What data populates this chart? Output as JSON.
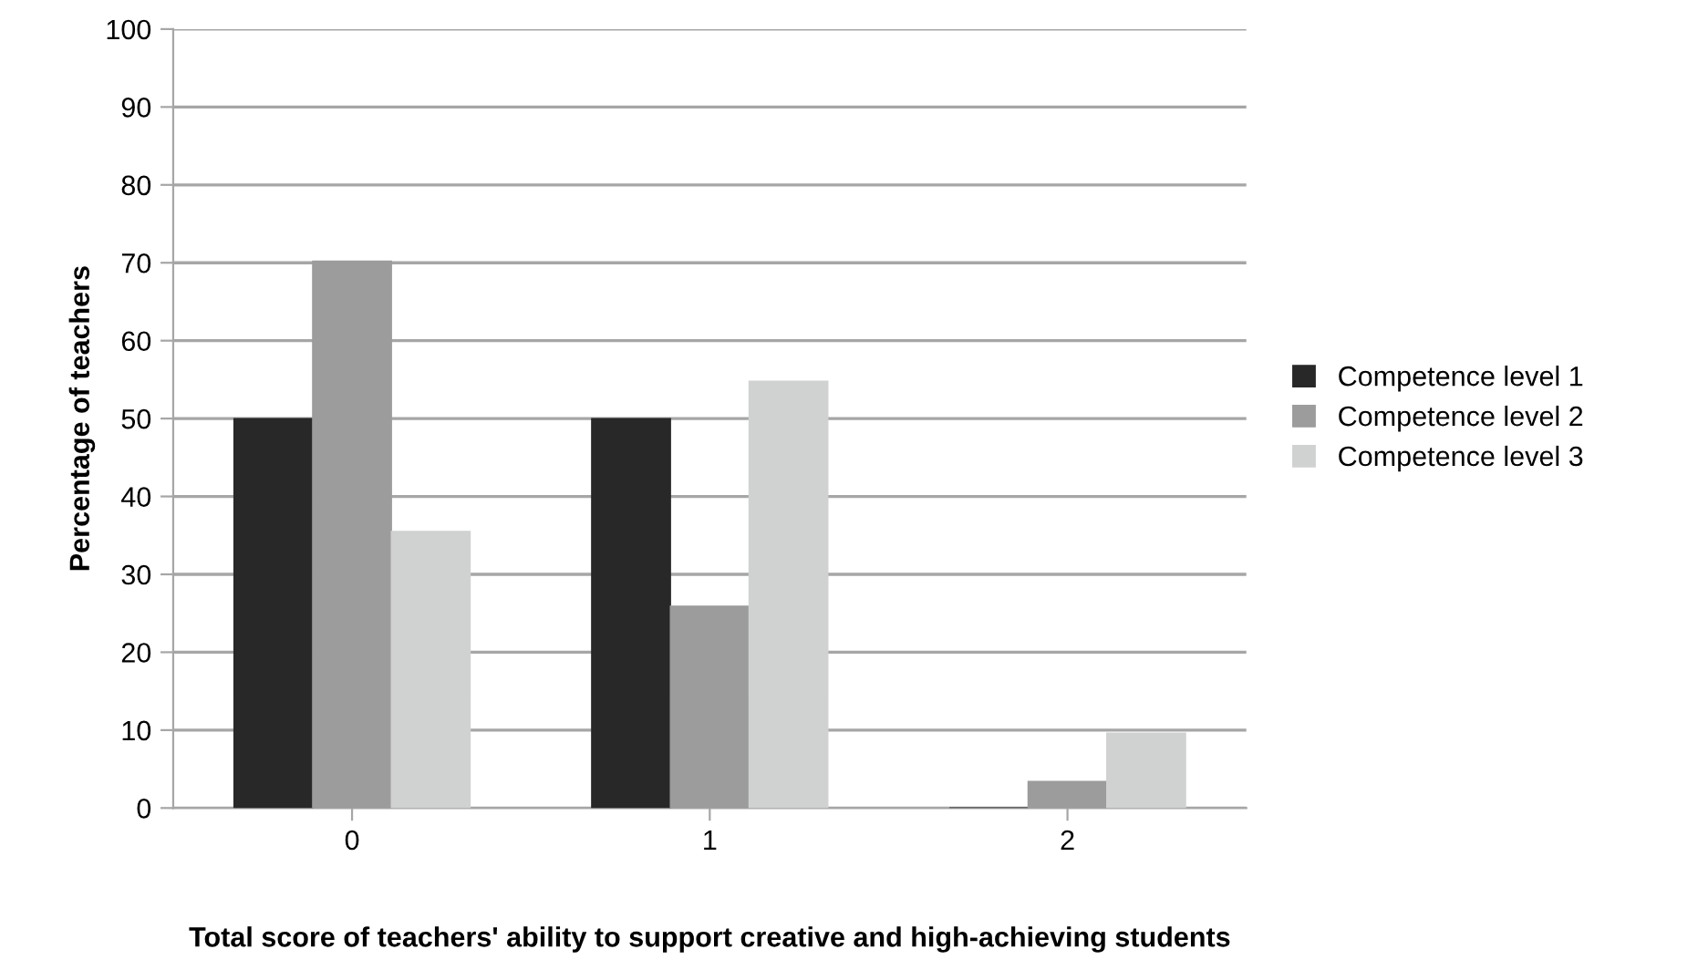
{
  "chart_data": {
    "type": "bar",
    "xlabel": "Total score of teachers' ability to support creative and high-achieving students",
    "ylabel": "Percentage of teachers",
    "categories": [
      "0",
      "1",
      "2"
    ],
    "series": [
      {
        "name": "Competence level 1",
        "color": "#282828",
        "values": [
          50,
          50,
          0
        ]
      },
      {
        "name": "Competence level 2",
        "color": "#9c9c9c",
        "values": [
          70.2,
          25.9,
          3.4
        ]
      },
      {
        "name": "Competence level 3",
        "color": "#d0d2d1",
        "values": [
          35.5,
          54.8,
          9.6
        ]
      }
    ],
    "ylim": [
      0,
      100
    ],
    "yticks": [
      0,
      10,
      20,
      30,
      40,
      50,
      60,
      70,
      80,
      90,
      100
    ],
    "grid": "y",
    "legend": "right"
  }
}
